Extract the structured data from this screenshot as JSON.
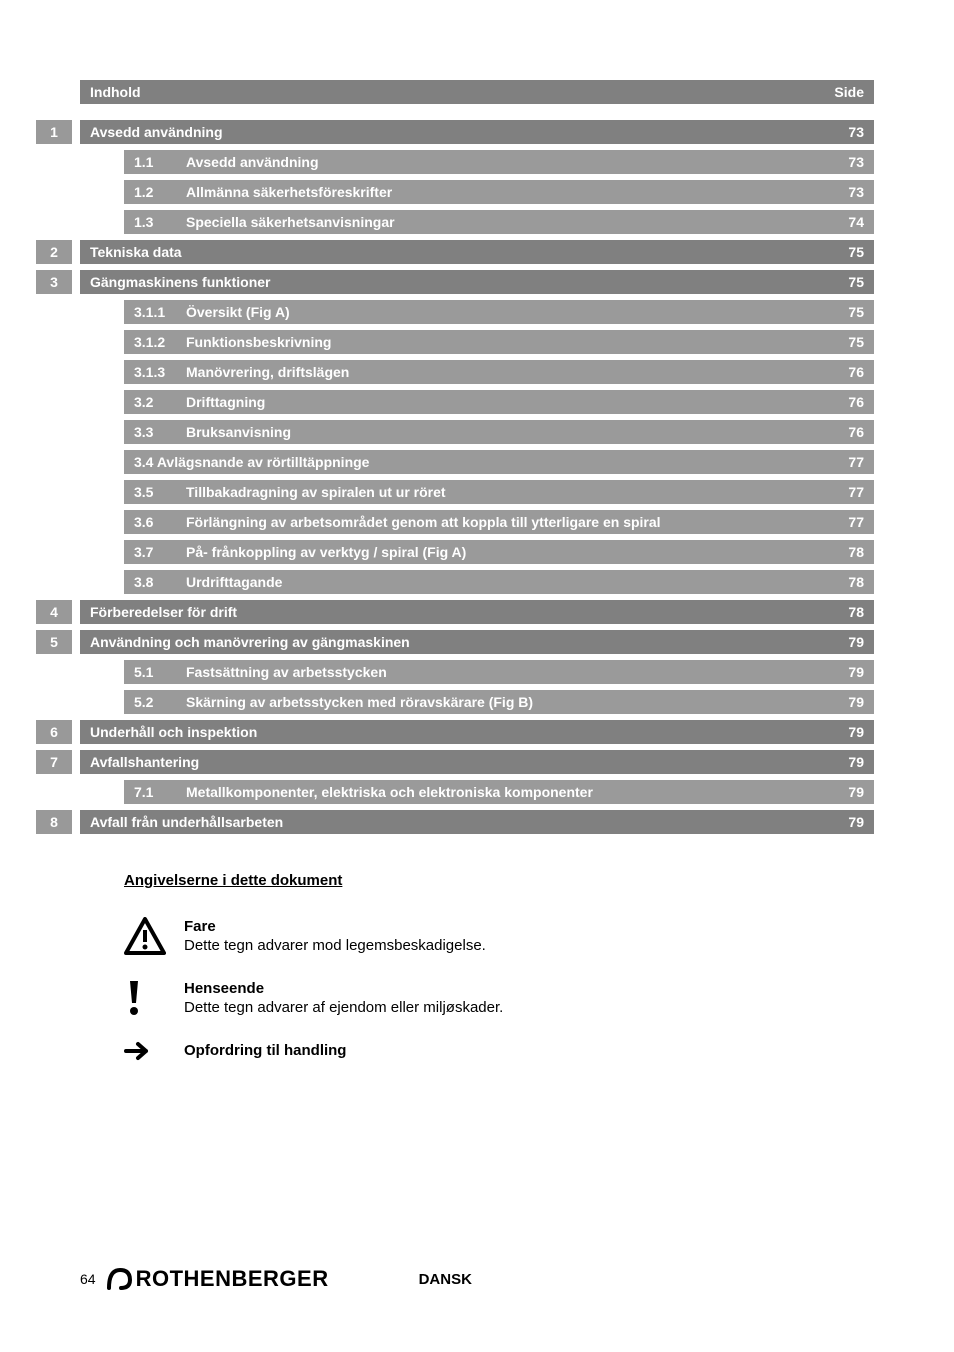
{
  "header": {
    "left": "Indhold",
    "right": "Side"
  },
  "toc": [
    {
      "level": 1,
      "num": "1",
      "subnum": "",
      "title": "Avsedd användning",
      "page": "73",
      "light": false
    },
    {
      "level": 2,
      "num": "",
      "subnum": "1.1",
      "title": "Avsedd användning",
      "page": "73",
      "light": true
    },
    {
      "level": 2,
      "num": "",
      "subnum": "1.2",
      "title": "Allmänna säkerhetsföreskrifter",
      "page": "73",
      "light": true
    },
    {
      "level": 2,
      "num": "",
      "subnum": "1.3",
      "title": "Speciella säkerhetsanvisningar",
      "page": "74",
      "light": true
    },
    {
      "level": 1,
      "num": "2",
      "subnum": "",
      "title": "Tekniska data",
      "page": "75",
      "light": false
    },
    {
      "level": 1,
      "num": "3",
      "subnum": "",
      "title": "Gängmaskinens funktioner",
      "page": "75",
      "light": false
    },
    {
      "level": 2,
      "num": "",
      "subnum": "3.1.1",
      "title": "Översikt  (Fig A)",
      "page": "75",
      "light": true
    },
    {
      "level": 2,
      "num": "",
      "subnum": "3.1.2",
      "title": "Funktionsbeskrivning",
      "page": "75",
      "light": true
    },
    {
      "level": 2,
      "num": "",
      "subnum": "3.1.3",
      "title": "Manövrering, driftslägen",
      "page": "76",
      "light": true
    },
    {
      "level": 2,
      "num": "",
      "subnum": "3.2",
      "title": "Drifttagning",
      "page": "76",
      "light": true
    },
    {
      "level": 2,
      "num": "",
      "subnum": "3.3",
      "title": "Bruksanvisning",
      "page": "76",
      "light": true
    },
    {
      "level": 2,
      "num": "",
      "subnum": "",
      "title": "3.4 Avlägsnande av rörtilltäppninge",
      "page": "77",
      "light": true
    },
    {
      "level": 2,
      "num": "",
      "subnum": "3.5",
      "title": "Tillbakadragning av spiralen ut ur röret",
      "page": "77",
      "light": true
    },
    {
      "level": 2,
      "num": "",
      "subnum": "3.6",
      "title": "Förlängning av arbetsområdet genom att koppla till ytterligare en spiral",
      "page": "77",
      "light": true
    },
    {
      "level": 2,
      "num": "",
      "subnum": "3.7",
      "title": "På- frånkoppling av verktyg / spiral  (Fig A)",
      "page": "78",
      "light": true
    },
    {
      "level": 2,
      "num": "",
      "subnum": "3.8",
      "title": "Urdrifttagande",
      "page": "78",
      "light": true
    },
    {
      "level": 1,
      "num": "4",
      "subnum": "",
      "title": "Förberedelser för drift",
      "page": "78",
      "light": false
    },
    {
      "level": 1,
      "num": "5",
      "subnum": "",
      "title": "Användning och manövrering av gängmaskinen",
      "page": "79",
      "light": false
    },
    {
      "level": 2,
      "num": "",
      "subnum": "5.1",
      "title": "Fastsättning av arbetsstycken",
      "page": "79",
      "light": true
    },
    {
      "level": 2,
      "num": "",
      "subnum": "5.2",
      "title": "Skärning av arbetsstycken med röravskärare (Fig B)",
      "page": "79",
      "light": true
    },
    {
      "level": 1,
      "num": "6",
      "subnum": "",
      "title": "Underhåll och inspektion",
      "page": "79",
      "light": false
    },
    {
      "level": 1,
      "num": "7",
      "subnum": "",
      "title": "Avfallshantering",
      "page": "79",
      "light": false
    },
    {
      "level": 2,
      "num": "",
      "subnum": "7.1",
      "title": "Metallkomponenter, elektriska och elektroniska komponenter",
      "page": "79",
      "light": true
    },
    {
      "level": 1,
      "num": "8",
      "subnum": "",
      "title": "Avfall från underhållsarbeten",
      "page": "79",
      "light": false
    }
  ],
  "markings": {
    "title": "Angivelserne i dette dokument",
    "items": [
      {
        "icon": "warning",
        "bold": "Fare",
        "desc": "Dette tegn advarer mod legemsbeskadigelse."
      },
      {
        "icon": "exclaim",
        "bold": "Henseende",
        "desc": "Dette tegn advarer af ejendom eller miljøskader."
      },
      {
        "icon": "arrow",
        "bold": "Opfordring til handling",
        "desc": ""
      }
    ]
  },
  "footer": {
    "page_number": "64",
    "brand": "ROTHENBERGER",
    "language": "DANSK"
  },
  "colors": {
    "bar_dark": "#808080",
    "bar_light": "#9a9a9a",
    "num_cell": "#999999",
    "text_white": "#ffffff",
    "text_black": "#000000"
  }
}
